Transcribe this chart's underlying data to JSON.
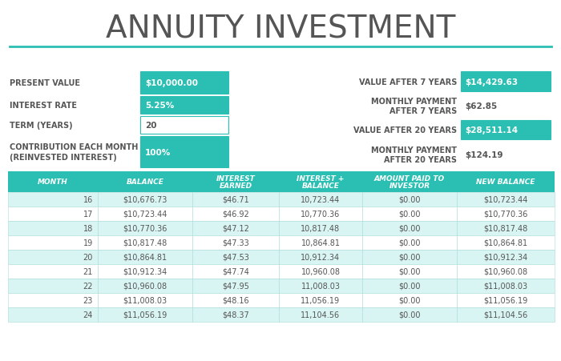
{
  "title": "ANNUITY INVESTMENT",
  "title_color": "#555555",
  "teal": "#2bbfb3",
  "teal_light": "#d9f5f3",
  "white": "#ffffff",
  "left_labels": [
    "PRESENT VALUE",
    "INTEREST RATE",
    "TERM (YEARS)",
    "CONTRIBUTION EACH MONTH\n(REINVESTED INTEREST)"
  ],
  "left_values": [
    "$10,000.00",
    "5.25%",
    "20",
    "100%"
  ],
  "left_green": [
    true,
    true,
    false,
    true
  ],
  "right_labels": [
    "VALUE AFTER 7 YEARS",
    "MONTHLY PAYMENT\nAFTER 7 YEARS",
    "VALUE AFTER 20 YEARS",
    "MONTHLY PAYMENT\nAFTER 20 YEARS"
  ],
  "right_values": [
    "$14,429.63",
    "$62.85",
    "$28,511.14",
    "$124.19"
  ],
  "right_green": [
    true,
    false,
    true,
    false
  ],
  "col_headers": [
    "MONTH",
    "BALANCE",
    "INTEREST\nEARNED",
    "INTEREST +\nBALANCE",
    "AMOUNT PAID TO\nINVESTOR",
    "NEW BALANCE"
  ],
  "table_data": [
    [
      "16",
      "$10,676.73",
      "$46.71",
      "10,723.44",
      "$0.00",
      "$10,723.44"
    ],
    [
      "17",
      "$10,723.44",
      "$46.92",
      "10,770.36",
      "$0.00",
      "$10,770.36"
    ],
    [
      "18",
      "$10,770.36",
      "$47.12",
      "10,817.48",
      "$0.00",
      "$10,817.48"
    ],
    [
      "19",
      "$10,817.48",
      "$47.33",
      "10,864.81",
      "$0.00",
      "$10,864.81"
    ],
    [
      "20",
      "$10,864.81",
      "$47.53",
      "10,912.34",
      "$0.00",
      "$10,912.34"
    ],
    [
      "21",
      "$10,912.34",
      "$47.74",
      "10,960.08",
      "$0.00",
      "$10,960.08"
    ],
    [
      "22",
      "$10,960.08",
      "$47.95",
      "11,008.03",
      "$0.00",
      "$11,008.03"
    ],
    [
      "23",
      "$11,008.03",
      "$48.16",
      "11,056.19",
      "$0.00",
      "$11,056.19"
    ],
    [
      "24",
      "$11,056.19",
      "$48.37",
      "11,104.56",
      "$0.00",
      "$11,104.56"
    ]
  ],
  "bg_color": "#ffffff",
  "txt_dark": "#555555"
}
